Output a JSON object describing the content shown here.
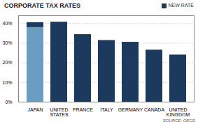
{
  "chart_data": {
    "type": "bar",
    "title": "CORPORATE TAX RATES",
    "categories": [
      "JAPAN",
      "UNITED\nSTATES",
      "FRANCE",
      "ITALY",
      "GERMANY",
      "CANADA",
      "UNITED\nKINGDOM"
    ],
    "series": [
      {
        "color": "#6b9dc2",
        "values": [
          38.0,
          null,
          null,
          null,
          null,
          null,
          null
        ]
      },
      {
        "name": "NEW RATE",
        "color": "#1b3a5e",
        "values": [
          2.5,
          40.75,
          34.4,
          31.4,
          30.5,
          26.5,
          24.0
        ]
      }
    ],
    "stacked": true,
    "ylim": [
      0,
      44
    ],
    "yticks": [
      {
        "value": 0,
        "label": "0%"
      },
      {
        "value": 10,
        "label": "10%"
      },
      {
        "value": 20,
        "label": "20%"
      },
      {
        "value": 30,
        "label": "30%"
      },
      {
        "value": 40,
        "label": "40%"
      }
    ],
    "grid": true,
    "legend": "upper right",
    "caption": "SOURCE: OECD"
  }
}
